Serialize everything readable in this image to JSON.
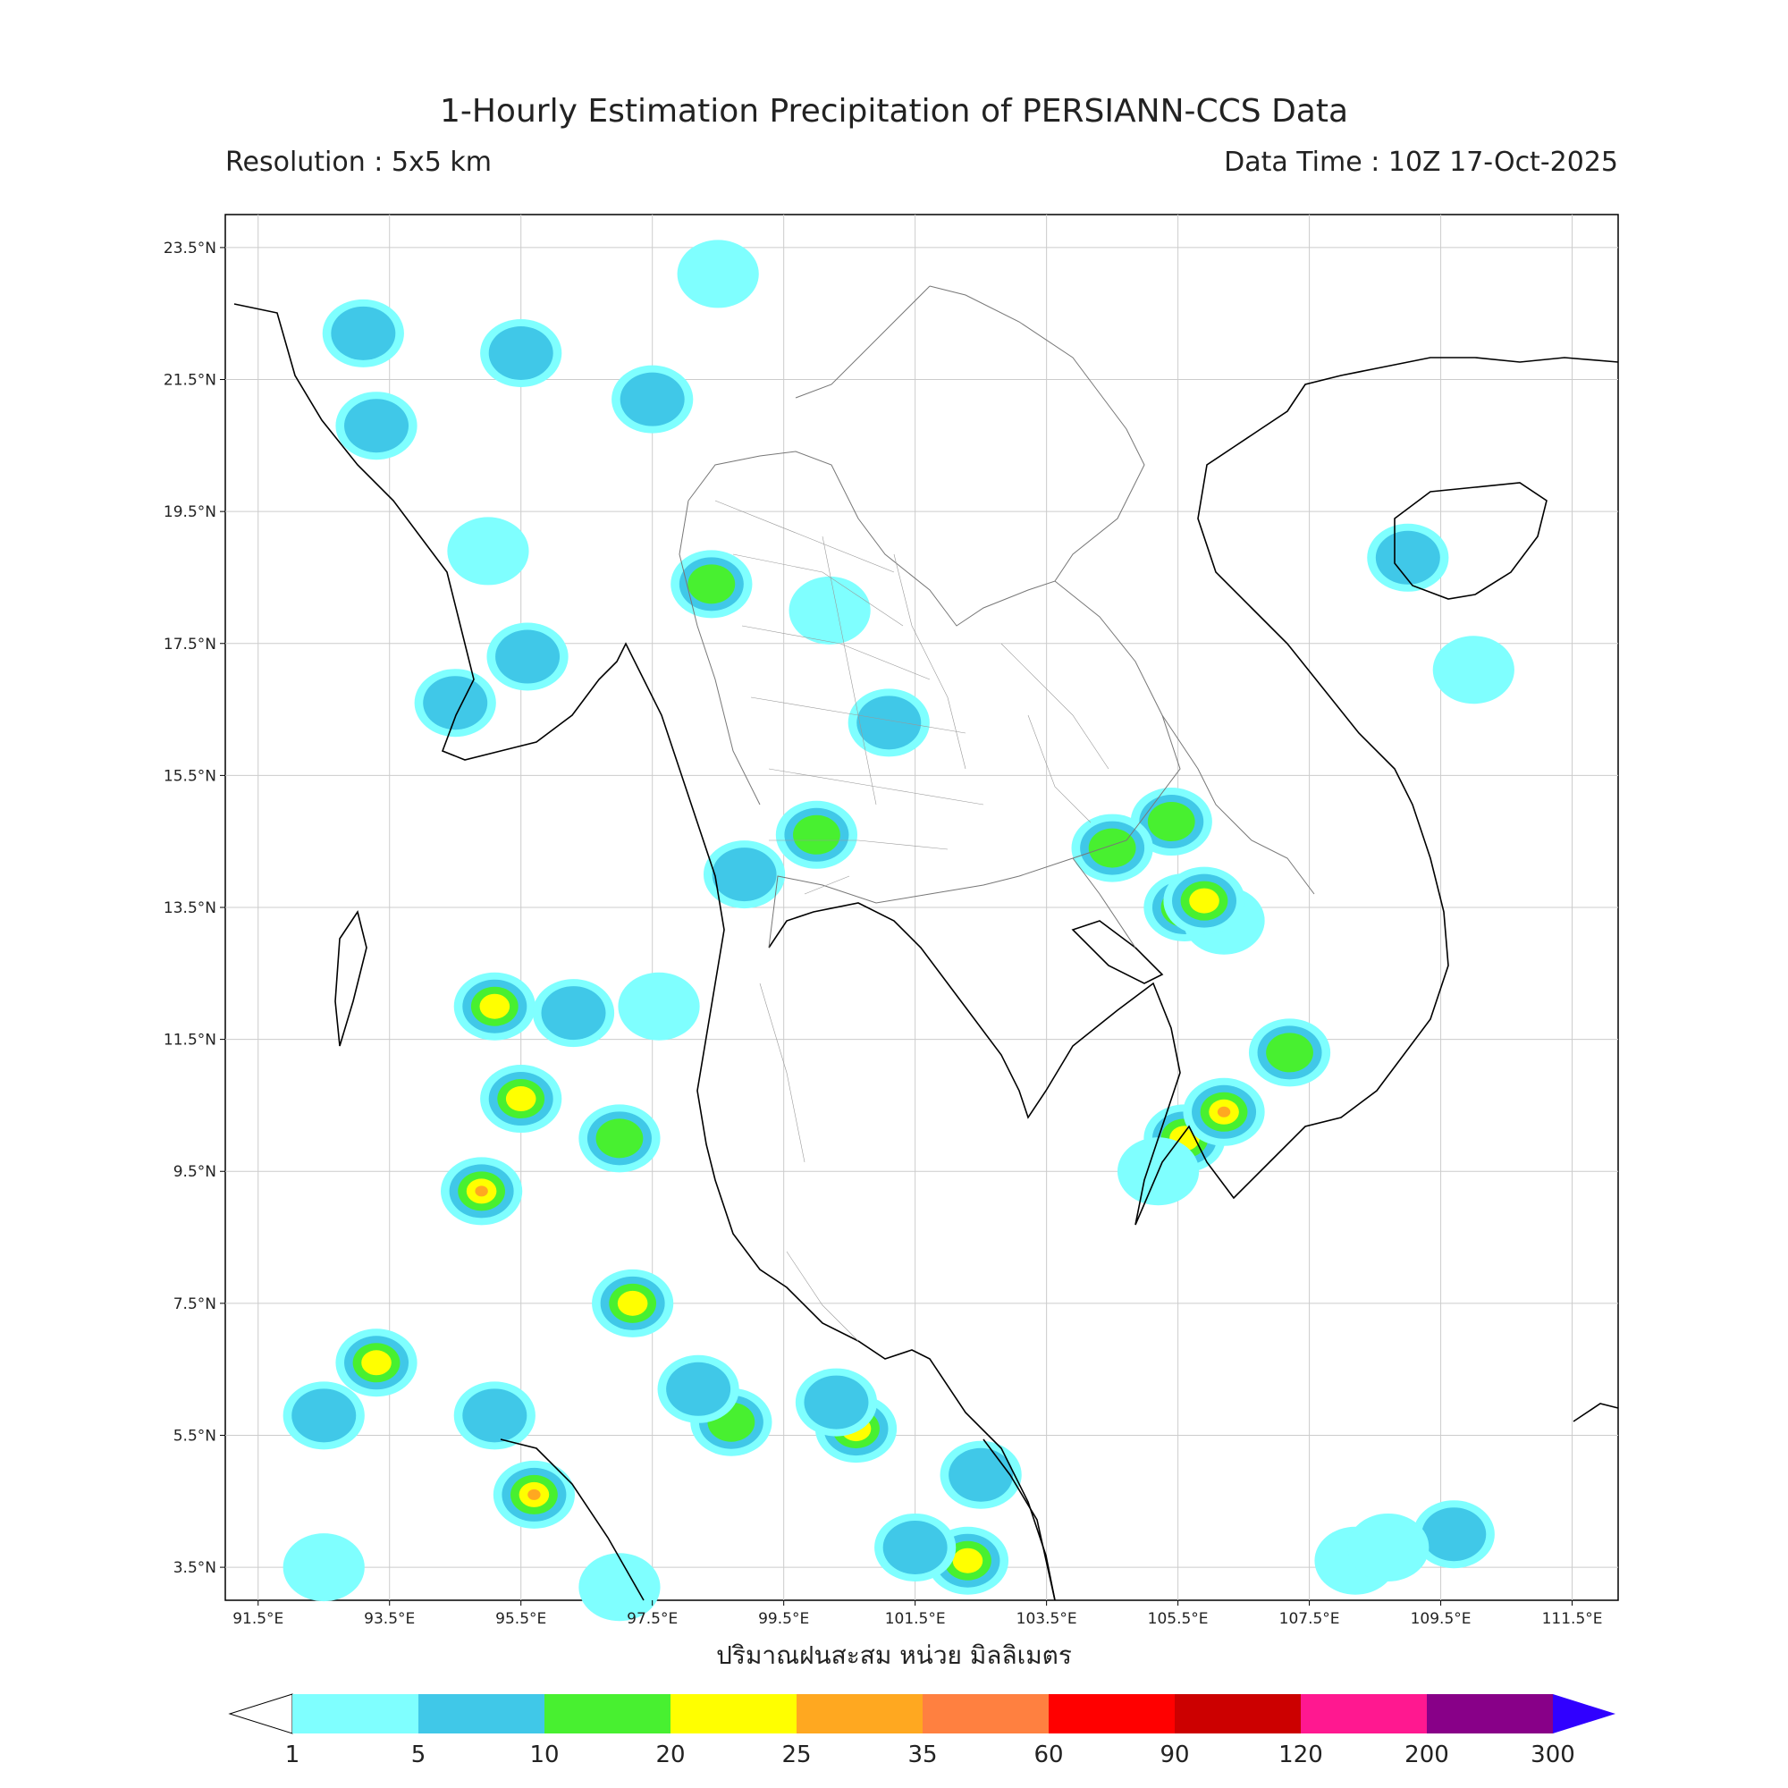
{
  "header": {
    "title": "1-Hourly Estimation Precipitation of PERSIANN-CCS Data",
    "resolution": "Resolution : 5x5 km",
    "data_time": "Data Time : 10Z 17-Oct-2025"
  },
  "axes": {
    "lon_ticks": [
      "91.5°E",
      "93.5°E",
      "95.5°E",
      "97.5°E",
      "99.5°E",
      "101.5°E",
      "103.5°E",
      "105.5°E",
      "107.5°E",
      "109.5°E",
      "111.5°E"
    ],
    "lat_ticks": [
      "23.5°N",
      "21.5°N",
      "19.5°N",
      "17.5°N",
      "15.5°N",
      "13.5°N",
      "11.5°N",
      "9.5°N",
      "7.5°N",
      "5.5°N",
      "3.5°N"
    ],
    "lon_range": [
      91.0,
      112.2
    ],
    "lat_range": [
      3.0,
      24.0
    ]
  },
  "xlabel": "ปริมาณฝนสะสม หน่วย มิลลิเมตร",
  "colorbar": {
    "ticks": [
      "1",
      "5",
      "10",
      "20",
      "25",
      "35",
      "60",
      "90",
      "120",
      "200",
      "300"
    ],
    "colors": [
      "#7fffff",
      "#40c8e8",
      "#48f030",
      "#ffff00",
      "#ffa820",
      "#ff8040",
      "#ff0000",
      "#cc0000",
      "#ff1890",
      "#880088",
      "#3000ff"
    ]
  },
  "rain_cells": [
    {
      "lon": 93.3,
      "lat": 20.8,
      "level": 2
    },
    {
      "lon": 93.1,
      "lat": 22.2,
      "level": 2
    },
    {
      "lon": 95.5,
      "lat": 21.9,
      "level": 2
    },
    {
      "lon": 97.5,
      "lat": 21.2,
      "level": 2
    },
    {
      "lon": 98.5,
      "lat": 23.1,
      "level": 1
    },
    {
      "lon": 98.4,
      "lat": 18.4,
      "level": 3
    },
    {
      "lon": 100.2,
      "lat": 18.0,
      "level": 1
    },
    {
      "lon": 95.6,
      "lat": 17.3,
      "level": 2
    },
    {
      "lon": 94.5,
      "lat": 16.6,
      "level": 2
    },
    {
      "lon": 95.0,
      "lat": 18.9,
      "level": 1
    },
    {
      "lon": 101.1,
      "lat": 16.3,
      "level": 2
    },
    {
      "lon": 100.0,
      "lat": 14.6,
      "level": 3
    },
    {
      "lon": 98.9,
      "lat": 14.0,
      "level": 2
    },
    {
      "lon": 105.4,
      "lat": 14.8,
      "level": 3
    },
    {
      "lon": 104.5,
      "lat": 14.4,
      "level": 3
    },
    {
      "lon": 105.6,
      "lat": 13.5,
      "level": 4
    },
    {
      "lon": 106.2,
      "lat": 13.3,
      "level": 1
    },
    {
      "lon": 107.2,
      "lat": 11.3,
      "level": 3
    },
    {
      "lon": 105.6,
      "lat": 10.0,
      "level": 4
    },
    {
      "lon": 106.2,
      "lat": 10.4,
      "level": 5
    },
    {
      "lon": 105.2,
      "lat": 9.5,
      "level": 1
    },
    {
      "lon": 95.1,
      "lat": 12.0,
      "level": 4
    },
    {
      "lon": 95.5,
      "lat": 10.6,
      "level": 4
    },
    {
      "lon": 96.3,
      "lat": 11.9,
      "level": 2
    },
    {
      "lon": 97.0,
      "lat": 10.0,
      "level": 3
    },
    {
      "lon": 94.9,
      "lat": 9.2,
      "level": 5
    },
    {
      "lon": 97.6,
      "lat": 12.0,
      "level": 1
    },
    {
      "lon": 97.2,
      "lat": 7.5,
      "level": 4
    },
    {
      "lon": 93.3,
      "lat": 6.6,
      "level": 4
    },
    {
      "lon": 92.5,
      "lat": 5.8,
      "level": 2
    },
    {
      "lon": 95.7,
      "lat": 4.6,
      "level": 5
    },
    {
      "lon": 95.1,
      "lat": 5.8,
      "level": 2
    },
    {
      "lon": 100.6,
      "lat": 5.6,
      "level": 4
    },
    {
      "lon": 100.3,
      "lat": 6.0,
      "level": 2
    },
    {
      "lon": 102.3,
      "lat": 3.6,
      "level": 4
    },
    {
      "lon": 101.5,
      "lat": 3.8,
      "level": 2
    },
    {
      "lon": 102.5,
      "lat": 4.9,
      "level": 2
    },
    {
      "lon": 98.7,
      "lat": 5.7,
      "level": 3
    },
    {
      "lon": 98.2,
      "lat": 6.2,
      "level": 2
    },
    {
      "lon": 109.0,
      "lat": 18.8,
      "level": 2
    },
    {
      "lon": 110.0,
      "lat": 17.1,
      "level": 1
    },
    {
      "lon": 105.9,
      "lat": 13.6,
      "level": 4
    },
    {
      "lon": 92.5,
      "lat": 3.5,
      "level": 1
    },
    {
      "lon": 97.0,
      "lat": 3.2,
      "level": 1
    },
    {
      "lon": 108.2,
      "lat": 3.6,
      "level": 1
    },
    {
      "lon": 109.7,
      "lat": 4.0,
      "level": 2
    },
    {
      "lon": 108.7,
      "lat": 3.8,
      "level": 1
    }
  ]
}
